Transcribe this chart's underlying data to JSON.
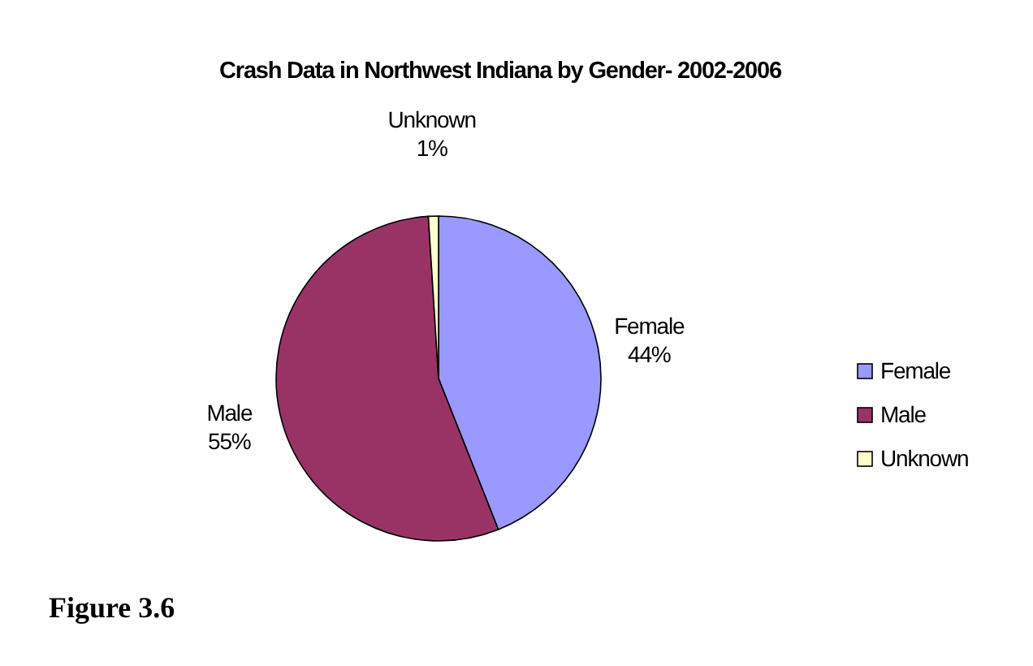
{
  "chart_data": {
    "type": "pie",
    "title": "Crash Data in Northwest Indiana by Gender- 2002-2006",
    "categories": [
      "Female",
      "Male",
      "Unknown"
    ],
    "values": [
      44,
      55,
      1
    ],
    "colors": [
      "#9999ff",
      "#993366",
      "#ffffcc"
    ],
    "value_labels": [
      "44%",
      "55%",
      "1%"
    ],
    "legend": "right",
    "annotations": [
      "Figure 3.6"
    ]
  }
}
